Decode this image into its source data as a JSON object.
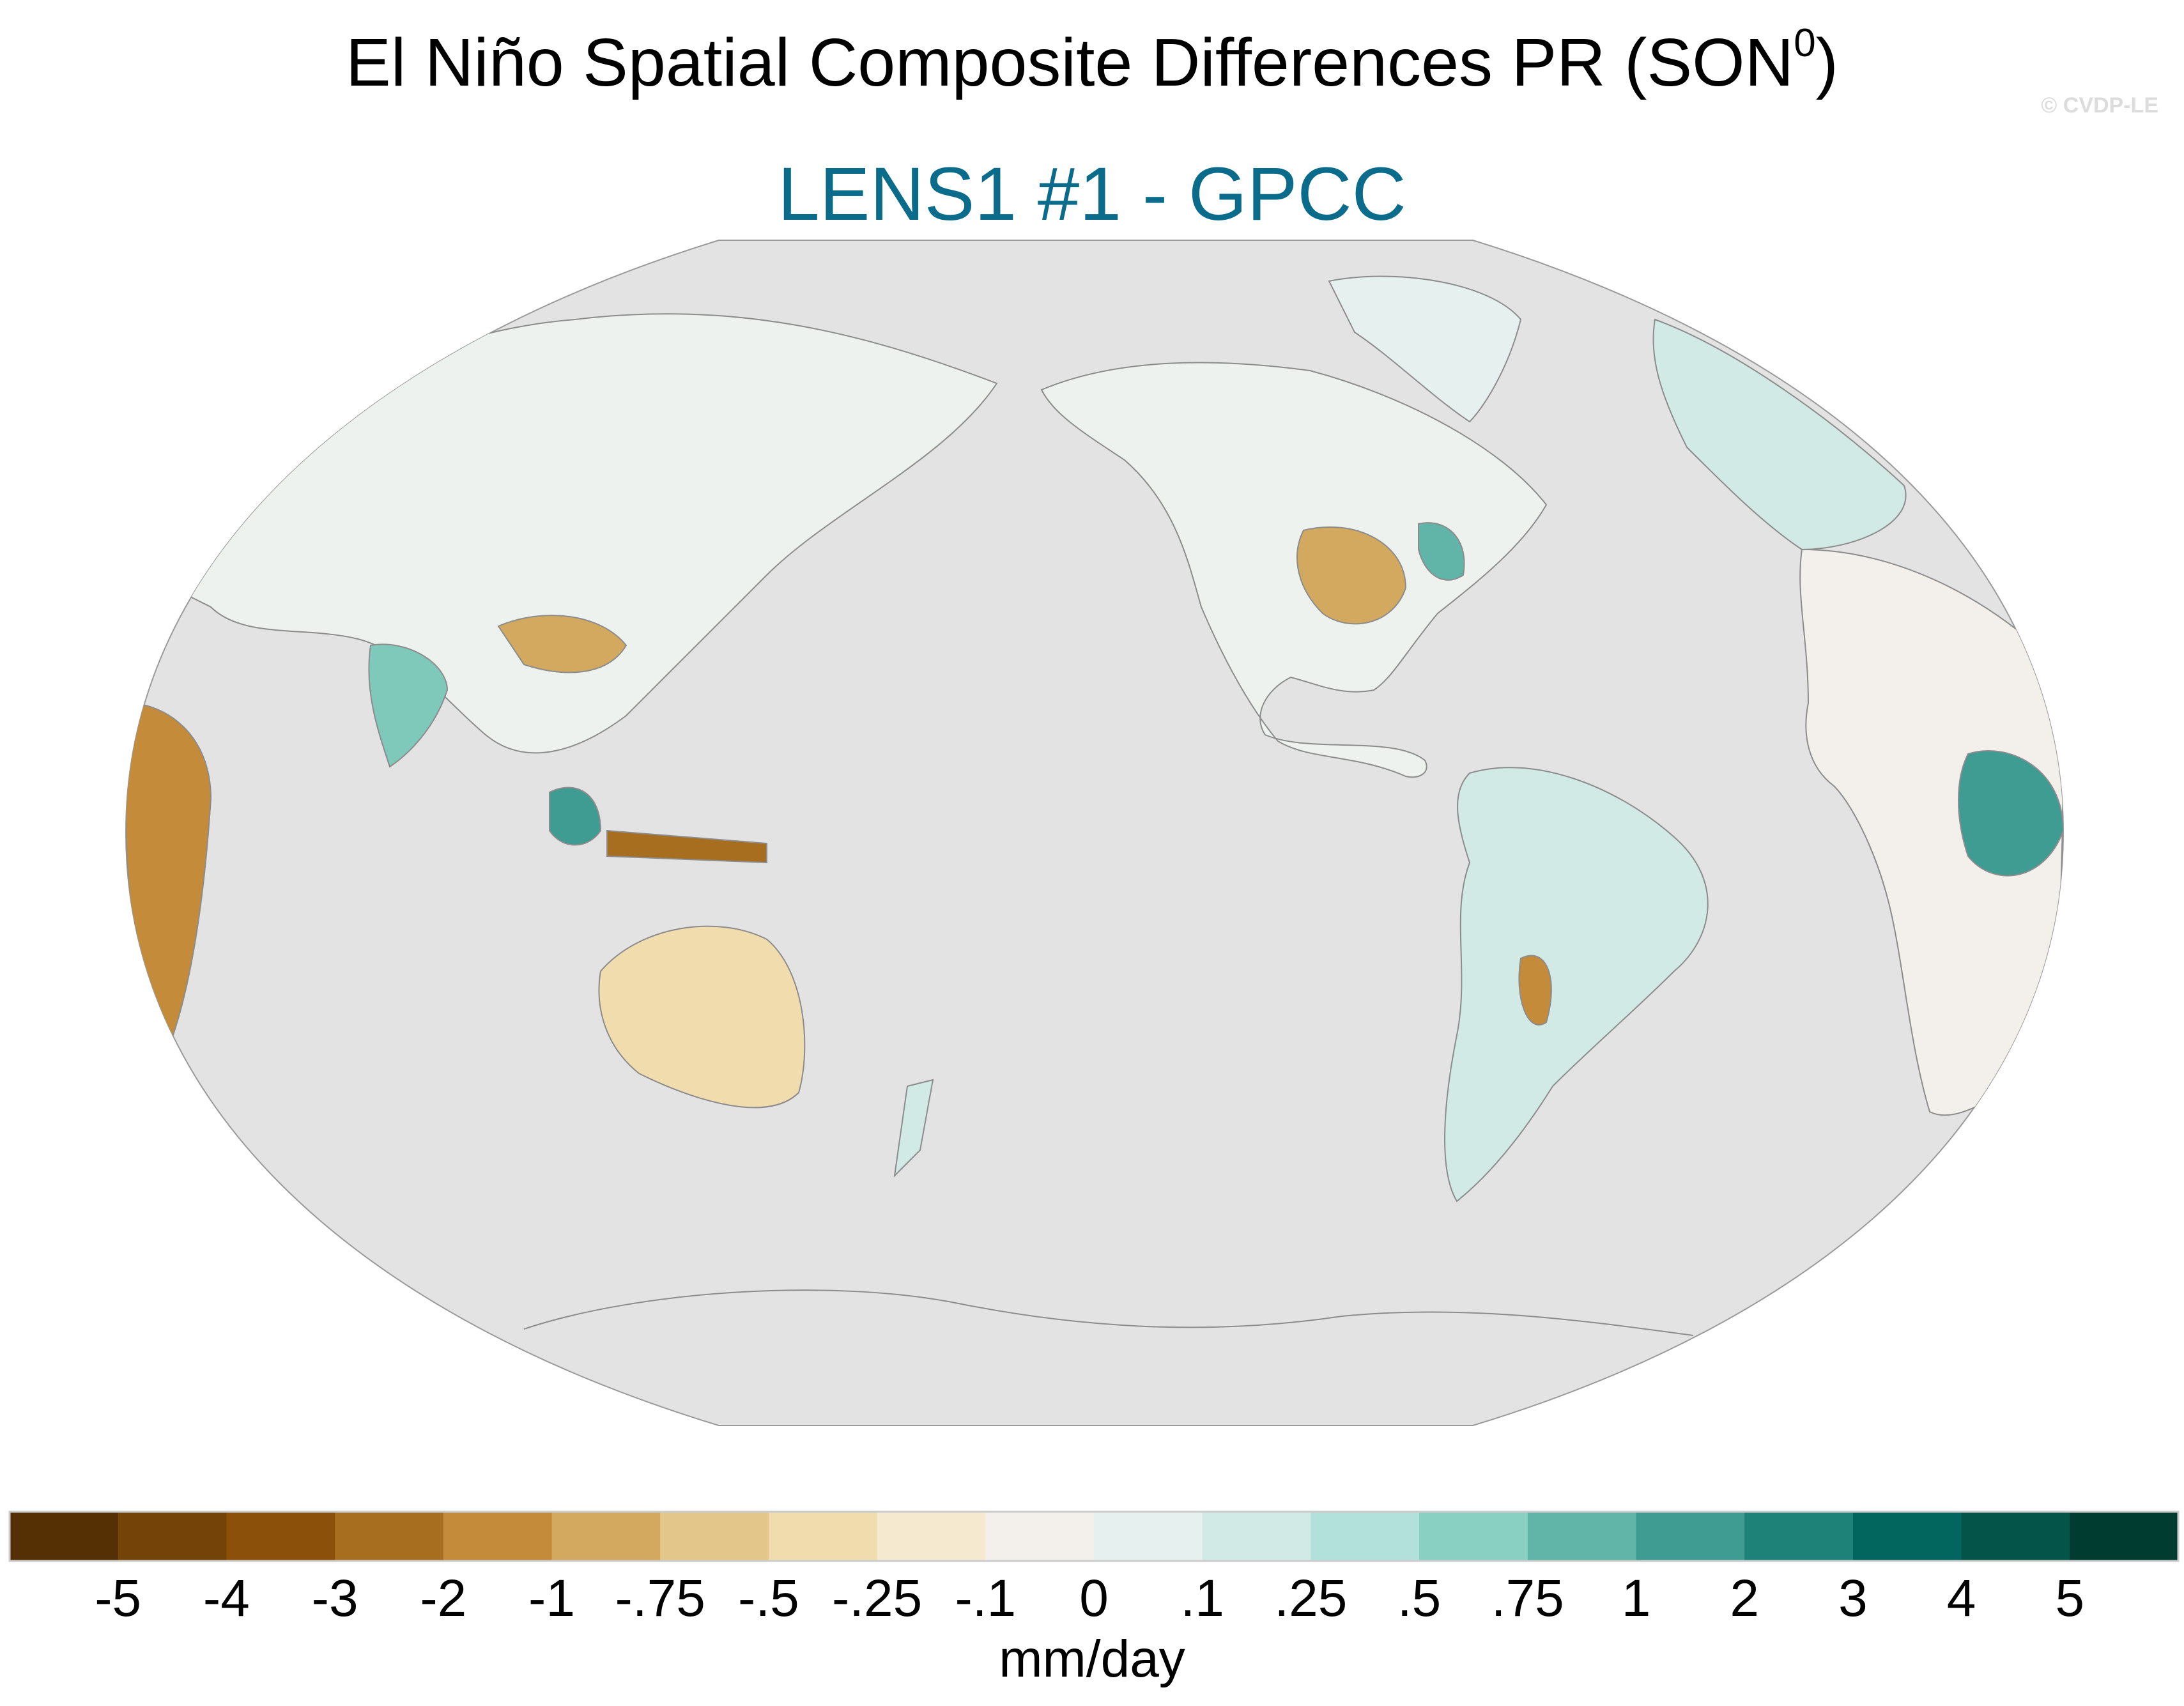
{
  "title": {
    "main": "El Niño Spatial Composite Differences PR (SON",
    "superscript": "0",
    "close": ")"
  },
  "subtitle": "LENS1 #1 - GPCC",
  "watermark": "© CVDP-LE",
  "map": {
    "projection": "robinson",
    "center_longitude": "Pacific-centered",
    "ocean_color": "#e3e3e3",
    "coastline_color": "#8c8c8c"
  },
  "colorbar": {
    "units": "mm/day",
    "labels": [
      "-5",
      "-4",
      "-3",
      "-2",
      "-1",
      "-.75",
      "-.5",
      "-.25",
      "-.1",
      "0",
      ".1",
      ".25",
      ".5",
      ".75",
      "1",
      "2",
      "3",
      "4",
      "5"
    ],
    "colors": [
      "#553005",
      "#734308",
      "#8b500a",
      "#a86e20",
      "#c38b3a",
      "#d2a95e",
      "#e3c78a",
      "#f0dcad",
      "#f5ead0",
      "#f3f0eb",
      "#e6f0ee",
      "#d1eae5",
      "#b2e0da",
      "#89d0c3",
      "#60b4a8",
      "#3e9c93",
      "#1e8279",
      "#02665e",
      "#04544a",
      "#003c30"
    ]
  }
}
